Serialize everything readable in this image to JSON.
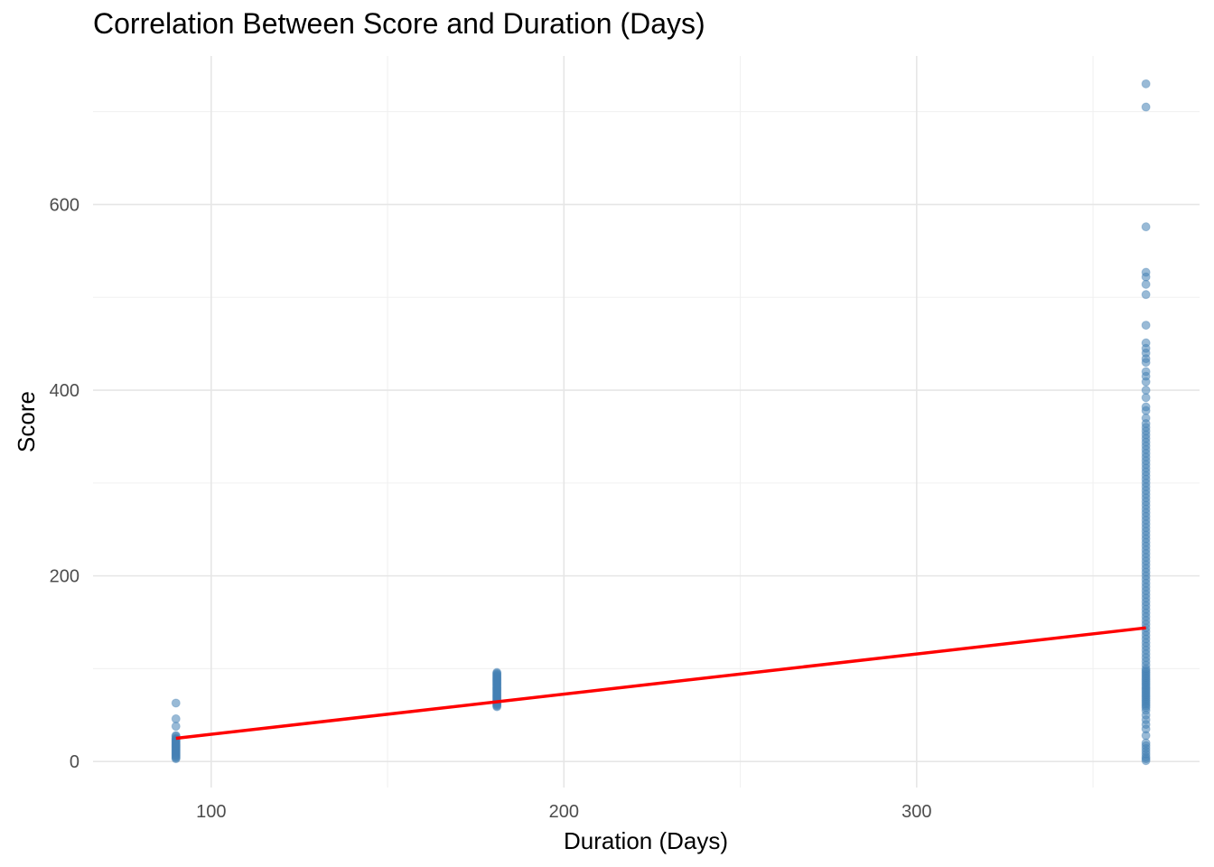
{
  "chart_data": {
    "type": "scatter",
    "title": "Correlation Between Score and Duration (Days)",
    "xlabel": "Duration (Days)",
    "ylabel": "Score",
    "xlim": [
      66.5,
      380.2
    ],
    "ylim": [
      -28,
      760
    ],
    "x_ticks": [
      100,
      200,
      300
    ],
    "y_ticks": [
      0,
      200,
      400,
      600
    ],
    "grid": true,
    "point_color": "#4682B4",
    "line_color": "#FF0000",
    "groups": [
      {
        "x": 90,
        "values": [
          63,
          46,
          38,
          28,
          27,
          25,
          24,
          23,
          22,
          21,
          20,
          19,
          18,
          17,
          16,
          15,
          14,
          13,
          12,
          11,
          10,
          9,
          8,
          7,
          6,
          5,
          4,
          3
        ]
      },
      {
        "x": 181,
        "values": [
          96,
          95,
          94,
          93,
          92,
          91,
          90,
          89,
          88,
          87,
          86,
          85,
          84,
          83,
          82,
          81,
          80,
          79,
          78,
          77,
          76,
          75,
          74,
          73,
          72,
          71,
          70,
          69,
          68,
          67,
          66,
          65,
          64,
          63,
          62,
          61,
          60,
          59
        ]
      },
      {
        "x": 365,
        "values": [
          730,
          705,
          576,
          527,
          522,
          514,
          503,
          470,
          451,
          445,
          440,
          434,
          430,
          420,
          415,
          409,
          400,
          392,
          382,
          378,
          370,
          364,
          360,
          356,
          352,
          348,
          344,
          340,
          336,
          332,
          328,
          324,
          320,
          316,
          312,
          308,
          304,
          300,
          296,
          292,
          288,
          284,
          280,
          276,
          272,
          268,
          264,
          260,
          256,
          252,
          248,
          244,
          240,
          236,
          232,
          228,
          224,
          220,
          216,
          212,
          208,
          204,
          200,
          196,
          192,
          188,
          184,
          180,
          176,
          172,
          168,
          164,
          160,
          156,
          152,
          148,
          144,
          140,
          136,
          132,
          128,
          124,
          120,
          116,
          112,
          108,
          104,
          100,
          98,
          96,
          94,
          92,
          90,
          88,
          86,
          84,
          82,
          80,
          78,
          76,
          74,
          72,
          70,
          68,
          66,
          64,
          62,
          60,
          58,
          55,
          50,
          45,
          40,
          35,
          28,
          20,
          17,
          14,
          11,
          8,
          5,
          3,
          1
        ]
      }
    ],
    "trend_line": {
      "x": [
        90,
        365
      ],
      "y": [
        25,
        144
      ]
    }
  }
}
